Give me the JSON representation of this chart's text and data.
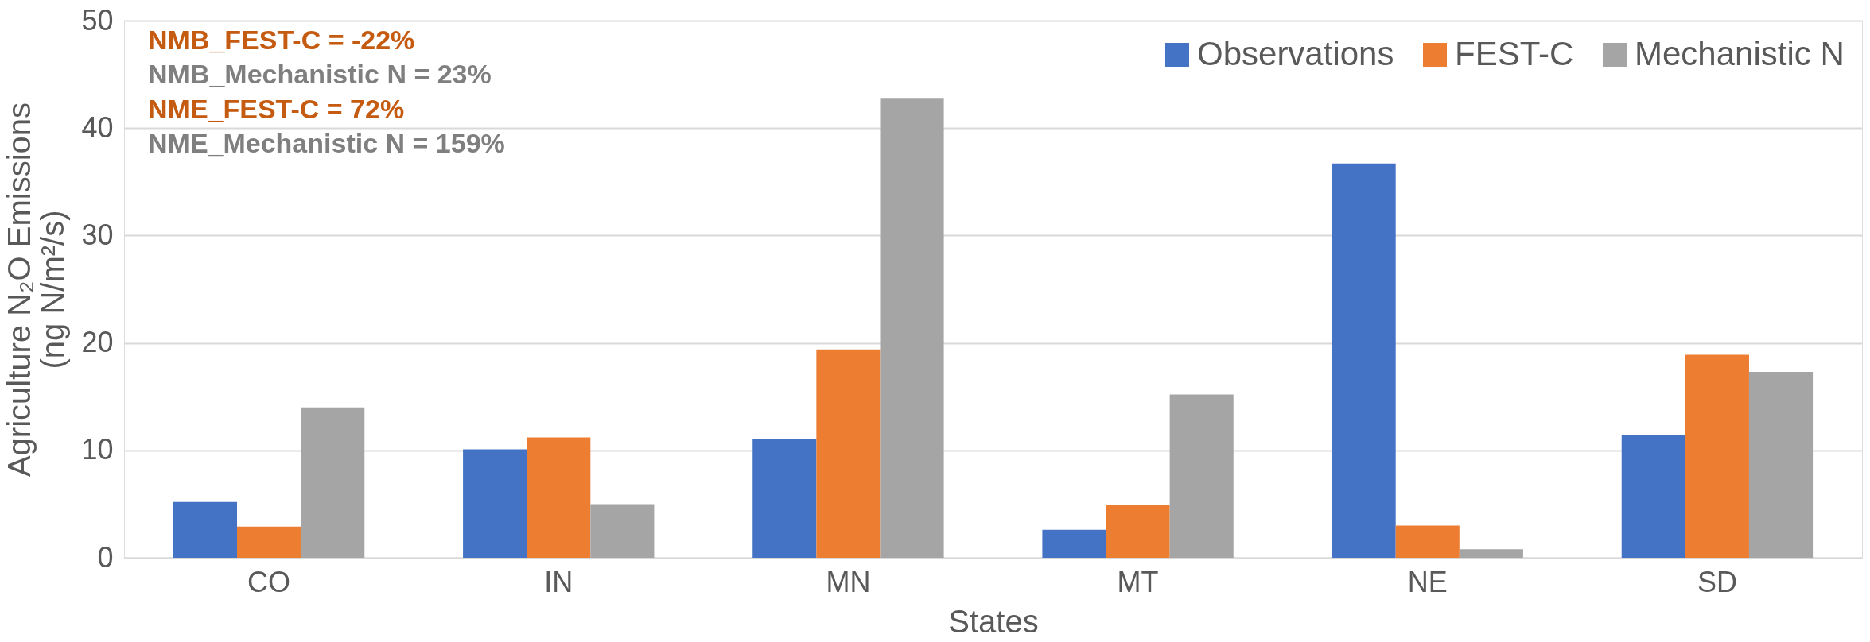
{
  "chart_data": {
    "type": "bar",
    "xlabel": "States",
    "ylabel": "Agriculture N₂O Emissions\n(ng N/m²/s)",
    "categories": [
      "CO",
      "IN",
      "MN",
      "MT",
      "NE",
      "SD"
    ],
    "series": [
      {
        "name": "Observations",
        "color": "#4472c4",
        "values": [
          5.2,
          10.1,
          11.1,
          2.6,
          36.7,
          11.4
        ]
      },
      {
        "name": "FEST-C",
        "color": "#ed7d31",
        "values": [
          2.9,
          11.2,
          19.4,
          4.9,
          3.0,
          18.9
        ]
      },
      {
        "name": "Mechanistic N",
        "color": "#a5a5a5",
        "values": [
          14.0,
          5.0,
          42.8,
          15.2,
          0.8,
          17.3
        ]
      }
    ],
    "ylim": [
      0,
      50
    ],
    "yticks": [
      0,
      10,
      20,
      30,
      40,
      50
    ],
    "grid": "y",
    "legend": "top right",
    "annotations": [
      "NMB_FEST-C = -22%",
      "NMB_Mechanistic N = 23%",
      "NME_FEST-C = 72%",
      "NME_Mechanistic N = 159%"
    ]
  }
}
